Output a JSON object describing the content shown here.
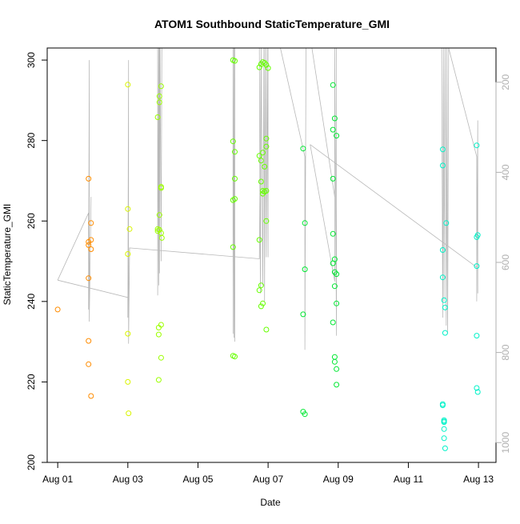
{
  "chart_data": {
    "type": "scatter",
    "title": "ATOM1 Southbound StaticTemperature_GMI",
    "xlabel": "Date",
    "ylabel": "StaticTemperature_GMI",
    "x_ticks": [
      "Aug 01",
      "Aug 03",
      "Aug 05",
      "Aug 07",
      "Aug 09",
      "Aug 11",
      "Aug 13"
    ],
    "x_tick_days": [
      1,
      3,
      5,
      7,
      9,
      11,
      13
    ],
    "xlim_days": [
      0.7,
      13.5
    ],
    "ylim": [
      200,
      303
    ],
    "y_ticks": [
      200,
      220,
      240,
      260,
      280,
      300
    ],
    "right_axis": {
      "ticks": [
        200,
        400,
        600,
        800,
        1000
      ],
      "range_top_to_bottom": [
        124,
        1044
      ],
      "reversed": true
    },
    "grid": false,
    "colors": {
      "orange": "#ff8c00",
      "yellow_lime": "#d9f500",
      "lime": "#9cff00",
      "green_lime": "#66ff00",
      "green": "#00e832",
      "spring_green": "#00ff88",
      "cyan": "#00f2c8",
      "profile_line": "#b8b8b8",
      "right_axis": "#b0b0b0"
    },
    "groups": [
      {
        "color_key": "orange",
        "points": [
          [
            1.0,
            238.0
          ],
          [
            1.88,
            270.5
          ],
          [
            1.88,
            254.8
          ],
          [
            1.88,
            254.0
          ],
          [
            1.88,
            245.8
          ],
          [
            1.88,
            230.2
          ],
          [
            1.88,
            224.4
          ],
          [
            1.95,
            255.3
          ],
          [
            1.95,
            259.5
          ],
          [
            1.95,
            253.0
          ],
          [
            1.95,
            216.5
          ]
        ]
      },
      {
        "color_key": "yellow_lime",
        "points": [
          [
            3.0,
            293.9
          ],
          [
            3.0,
            263.0
          ],
          [
            3.0,
            251.8
          ],
          [
            3.0,
            232.0
          ],
          [
            3.0,
            220.0
          ],
          [
            3.02,
            212.2
          ],
          [
            3.05,
            258.0
          ]
        ]
      },
      {
        "color_key": "lime",
        "points": [
          [
            3.85,
            285.8
          ],
          [
            3.85,
            258.0
          ],
          [
            3.85,
            257.5
          ],
          [
            3.88,
            233.5
          ],
          [
            3.88,
            231.8
          ],
          [
            3.88,
            220.5
          ],
          [
            3.9,
            291.0
          ],
          [
            3.9,
            289.5
          ],
          [
            3.9,
            261.5
          ],
          [
            3.9,
            257.8
          ],
          [
            3.95,
            293.5
          ],
          [
            3.95,
            268.5
          ],
          [
            3.95,
            268.2
          ],
          [
            3.95,
            257.0
          ],
          [
            3.95,
            234.2
          ],
          [
            3.95,
            226.0
          ],
          [
            3.97,
            255.8
          ]
        ]
      },
      {
        "color_key": "green_lime",
        "points": [
          [
            6.0,
            300.0
          ],
          [
            6.0,
            279.8
          ],
          [
            6.0,
            265.2
          ],
          [
            6.0,
            253.5
          ],
          [
            6.0,
            226.5
          ],
          [
            6.05,
            299.8
          ],
          [
            6.05,
            277.2
          ],
          [
            6.05,
            270.5
          ],
          [
            6.05,
            265.5
          ],
          [
            6.05,
            226.3
          ],
          [
            6.75,
            298.2
          ],
          [
            6.75,
            276.2
          ],
          [
            6.75,
            255.3
          ],
          [
            6.75,
            242.8
          ],
          [
            6.8,
            299.0
          ],
          [
            6.8,
            275.0
          ],
          [
            6.8,
            269.8
          ],
          [
            6.8,
            244.0
          ],
          [
            6.8,
            238.8
          ],
          [
            6.85,
            299.5
          ],
          [
            6.85,
            277.0
          ],
          [
            6.85,
            267.5
          ],
          [
            6.85,
            266.8
          ],
          [
            6.85,
            239.5
          ],
          [
            6.9,
            299.3
          ],
          [
            6.9,
            273.5
          ],
          [
            6.9,
            267.3
          ],
          [
            6.95,
            298.8
          ],
          [
            6.95,
            280.5
          ],
          [
            6.95,
            278.5
          ],
          [
            6.95,
            267.5
          ],
          [
            6.95,
            260.0
          ],
          [
            6.95,
            233.0
          ],
          [
            7.0,
            298.0
          ]
        ]
      },
      {
        "color_key": "green",
        "points": [
          [
            8.0,
            278.0
          ],
          [
            8.0,
            236.8
          ],
          [
            8.0,
            212.6
          ],
          [
            8.05,
            259.5
          ],
          [
            8.05,
            248.0
          ],
          [
            8.05,
            212.0
          ],
          [
            8.85,
            293.8
          ],
          [
            8.85,
            282.7
          ],
          [
            8.85,
            270.5
          ],
          [
            8.85,
            256.8
          ],
          [
            8.85,
            249.5
          ],
          [
            8.85,
            234.8
          ],
          [
            8.9,
            285.5
          ],
          [
            8.9,
            250.5
          ],
          [
            8.9,
            247.3
          ],
          [
            8.9,
            243.8
          ],
          [
            8.9,
            226.2
          ],
          [
            8.9,
            225.0
          ],
          [
            8.95,
            281.2
          ],
          [
            8.95,
            246.8
          ],
          [
            8.95,
            239.5
          ],
          [
            8.95,
            223.2
          ],
          [
            8.95,
            219.3
          ]
        ]
      },
      {
        "color_key": "cyan",
        "points": [
          [
            11.98,
            277.8
          ],
          [
            11.98,
            273.8
          ],
          [
            11.98,
            252.8
          ],
          [
            11.98,
            246.0
          ],
          [
            11.98,
            214.5
          ],
          [
            11.98,
            214.2
          ],
          [
            12.02,
            240.3
          ],
          [
            12.02,
            210.5
          ],
          [
            12.02,
            210.2
          ],
          [
            12.02,
            210.0
          ],
          [
            12.02,
            208.3
          ],
          [
            12.02,
            206.0
          ],
          [
            12.05,
            238.5
          ],
          [
            12.05,
            232.2
          ],
          [
            12.05,
            203.5
          ],
          [
            12.08,
            259.5
          ],
          [
            12.95,
            278.8
          ],
          [
            12.95,
            256.0
          ],
          [
            12.95,
            248.8
          ],
          [
            12.95,
            231.5
          ],
          [
            12.95,
            218.5
          ],
          [
            12.98,
            256.5
          ],
          [
            12.98,
            217.5
          ]
        ]
      }
    ],
    "profile_lines": [
      [
        [
          1.0,
          245.3
        ],
        [
          1.88,
          262.0
        ],
        [
          1.88,
          238.0
        ],
        [
          1.9,
          300.0
        ],
        [
          1.9,
          235.0
        ],
        [
          1.95,
          266.0
        ]
      ],
      [
        [
          1.0,
          245.3
        ],
        [
          3.0,
          241.0
        ],
        [
          3.0,
          236.0
        ],
        [
          3.02,
          300.0
        ],
        [
          3.02,
          229.5
        ],
        [
          3.05,
          253.3
        ],
        [
          6.75,
          250.6
        ],
        [
          6.8,
          300.0
        ]
      ],
      [
        [
          3.85,
          303
        ],
        [
          3.85,
          241.5
        ],
        [
          3.88,
          303
        ],
        [
          3.88,
          244
        ],
        [
          3.9,
          303
        ],
        [
          3.9,
          247
        ],
        [
          3.92,
          303
        ],
        [
          3.95,
          250
        ],
        [
          3.97,
          303
        ]
      ],
      [
        [
          6.0,
          232.0
        ],
        [
          6.0,
          303
        ],
        [
          6.03,
          231.0
        ],
        [
          6.03,
          303
        ],
        [
          6.05,
          230.0
        ],
        [
          6.05,
          303
        ],
        [
          6.08,
          303
        ],
        [
          6.5,
          303
        ]
      ],
      [
        [
          6.75,
          303
        ],
        [
          6.78,
          242
        ],
        [
          6.8,
          303
        ],
        [
          6.85,
          244
        ],
        [
          6.88,
          303
        ],
        [
          6.9,
          240
        ],
        [
          6.92,
          303
        ],
        [
          6.95,
          251
        ],
        [
          6.97,
          303
        ],
        [
          7.0,
          251
        ],
        [
          7.0,
          303
        ]
      ],
      [
        [
          7.35,
          303
        ],
        [
          8.05,
          276.0
        ],
        [
          8.05,
          228.0
        ],
        [
          8.08,
          303
        ],
        [
          8.15,
          303
        ]
      ],
      [
        [
          8.2,
          279.0
        ],
        [
          8.9,
          245.0
        ],
        [
          8.9,
          303
        ],
        [
          8.95,
          231.5
        ],
        [
          8.95,
          303
        ],
        [
          9.0,
          303
        ]
      ],
      [
        [
          8.2,
          279.0
        ],
        [
          12.95,
          248.5
        ]
      ],
      [
        [
          8.25,
          303
        ],
        [
          8.9,
          266.0
        ]
      ],
      [
        [
          11.95,
          303
        ],
        [
          11.98,
          236.0
        ],
        [
          12.0,
          303
        ],
        [
          12.02,
          240
        ],
        [
          12.05,
          303
        ],
        [
          12.08,
          234
        ],
        [
          12.1,
          303
        ],
        [
          12.12,
          232
        ],
        [
          12.15,
          303
        ]
      ],
      [
        [
          12.15,
          303
        ],
        [
          12.95,
          276.0
        ],
        [
          12.95,
          240.0
        ],
        [
          12.98,
          285.0
        ],
        [
          12.98,
          242.0
        ]
      ]
    ]
  }
}
